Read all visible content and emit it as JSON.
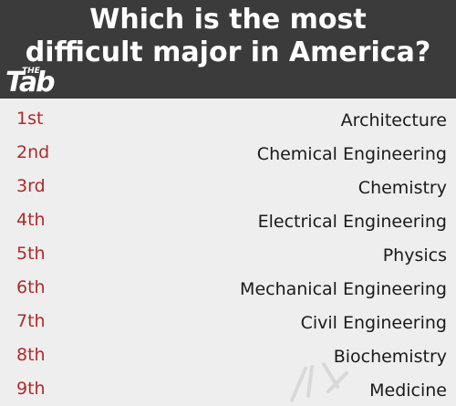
{
  "header": {
    "title_line1": "Which is the most",
    "title_line2": "difficult major in America?",
    "logo": {
      "small_text": "THE",
      "main_text": "Tab"
    }
  },
  "rankings": [
    {
      "rank": "1st",
      "major": "Architecture"
    },
    {
      "rank": "2nd",
      "major": "Chemical Engineering"
    },
    {
      "rank": "3rd",
      "major": "Chemistry"
    },
    {
      "rank": "4th",
      "major": "Electrical Engineering"
    },
    {
      "rank": "5th",
      "major": "Physics"
    },
    {
      "rank": "6th",
      "major": "Mechanical Engineering"
    },
    {
      "rank": "7th",
      "major": "Civil Engineering"
    },
    {
      "rank": "8th",
      "major": "Biochemistry"
    },
    {
      "rank": "9th",
      "major": "Medicine"
    }
  ],
  "colors": {
    "header_bg": "#3b3b3b",
    "page_bg": "#eeeeee",
    "rank_text": "#b02a2a",
    "major_text": "#1a1a1a",
    "title_text": "#ffffff"
  }
}
